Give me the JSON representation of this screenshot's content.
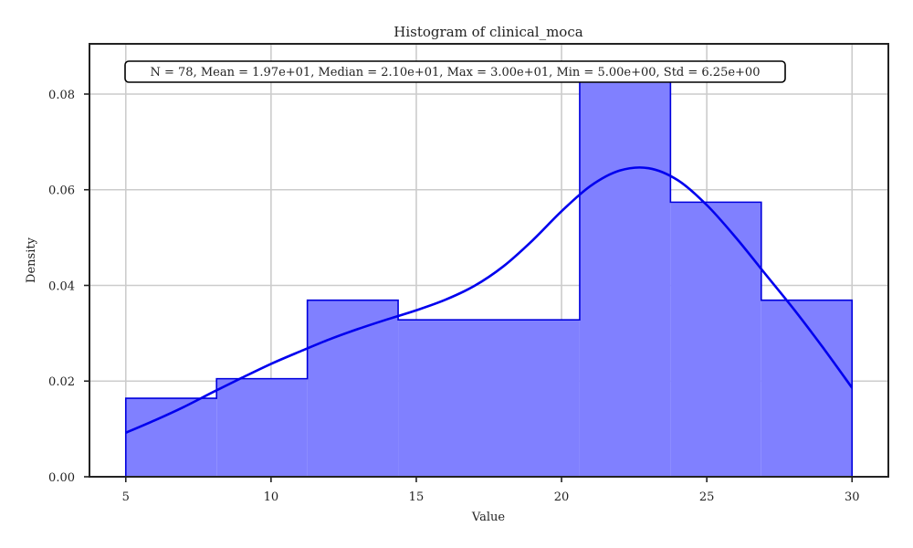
{
  "chart_data": {
    "type": "histogram",
    "title": "Histogram of clinical_moca",
    "xlabel": "Value",
    "ylabel": "Density",
    "xlim": [
      3.75,
      31.25
    ],
    "ylim": [
      0,
      0.0905
    ],
    "x_ticks": [
      5,
      10,
      15,
      20,
      25,
      30
    ],
    "x_tick_labels": [
      "5",
      "10",
      "15",
      "20",
      "25",
      "30"
    ],
    "y_ticks": [
      0,
      0.02,
      0.04,
      0.06,
      0.08
    ],
    "y_tick_labels": [
      "0.00",
      "0.02",
      "0.04",
      "0.06",
      "0.08"
    ],
    "grid": true,
    "stats_annotation": "N = 78, Mean = 1.97e+01, Median = 2.10e+01, Max = 3.00e+01, Min = 5.00e+00, Std = 6.25e+00",
    "bin_edges": [
      5.0,
      8.125,
      11.25,
      14.375,
      17.5,
      20.625,
      23.75,
      26.875,
      30.0
    ],
    "bin_density": [
      0.0164,
      0.0205,
      0.0369,
      0.0328,
      0.0328,
      0.0861,
      0.0574,
      0.0369
    ],
    "kde": {
      "x": [
        5,
        6,
        7,
        8,
        9,
        10,
        11,
        12,
        13,
        14,
        15,
        16,
        17,
        18,
        19,
        20,
        21,
        22,
        23,
        24,
        25,
        26,
        27,
        28,
        29,
        30
      ],
      "y": [
        0.0092,
        0.0118,
        0.0146,
        0.0177,
        0.0207,
        0.0236,
        0.0262,
        0.0287,
        0.0309,
        0.0329,
        0.0348,
        0.037,
        0.0399,
        0.044,
        0.0494,
        0.0555,
        0.0608,
        0.064,
        0.0645,
        0.062,
        0.0568,
        0.05,
        0.0425,
        0.035,
        0.027,
        0.0186
      ]
    },
    "colors": {
      "bar_fill": "#8080ff",
      "bar_edge": "#0000dd",
      "kde_line": "#0000ee",
      "frame": "#222222"
    }
  }
}
